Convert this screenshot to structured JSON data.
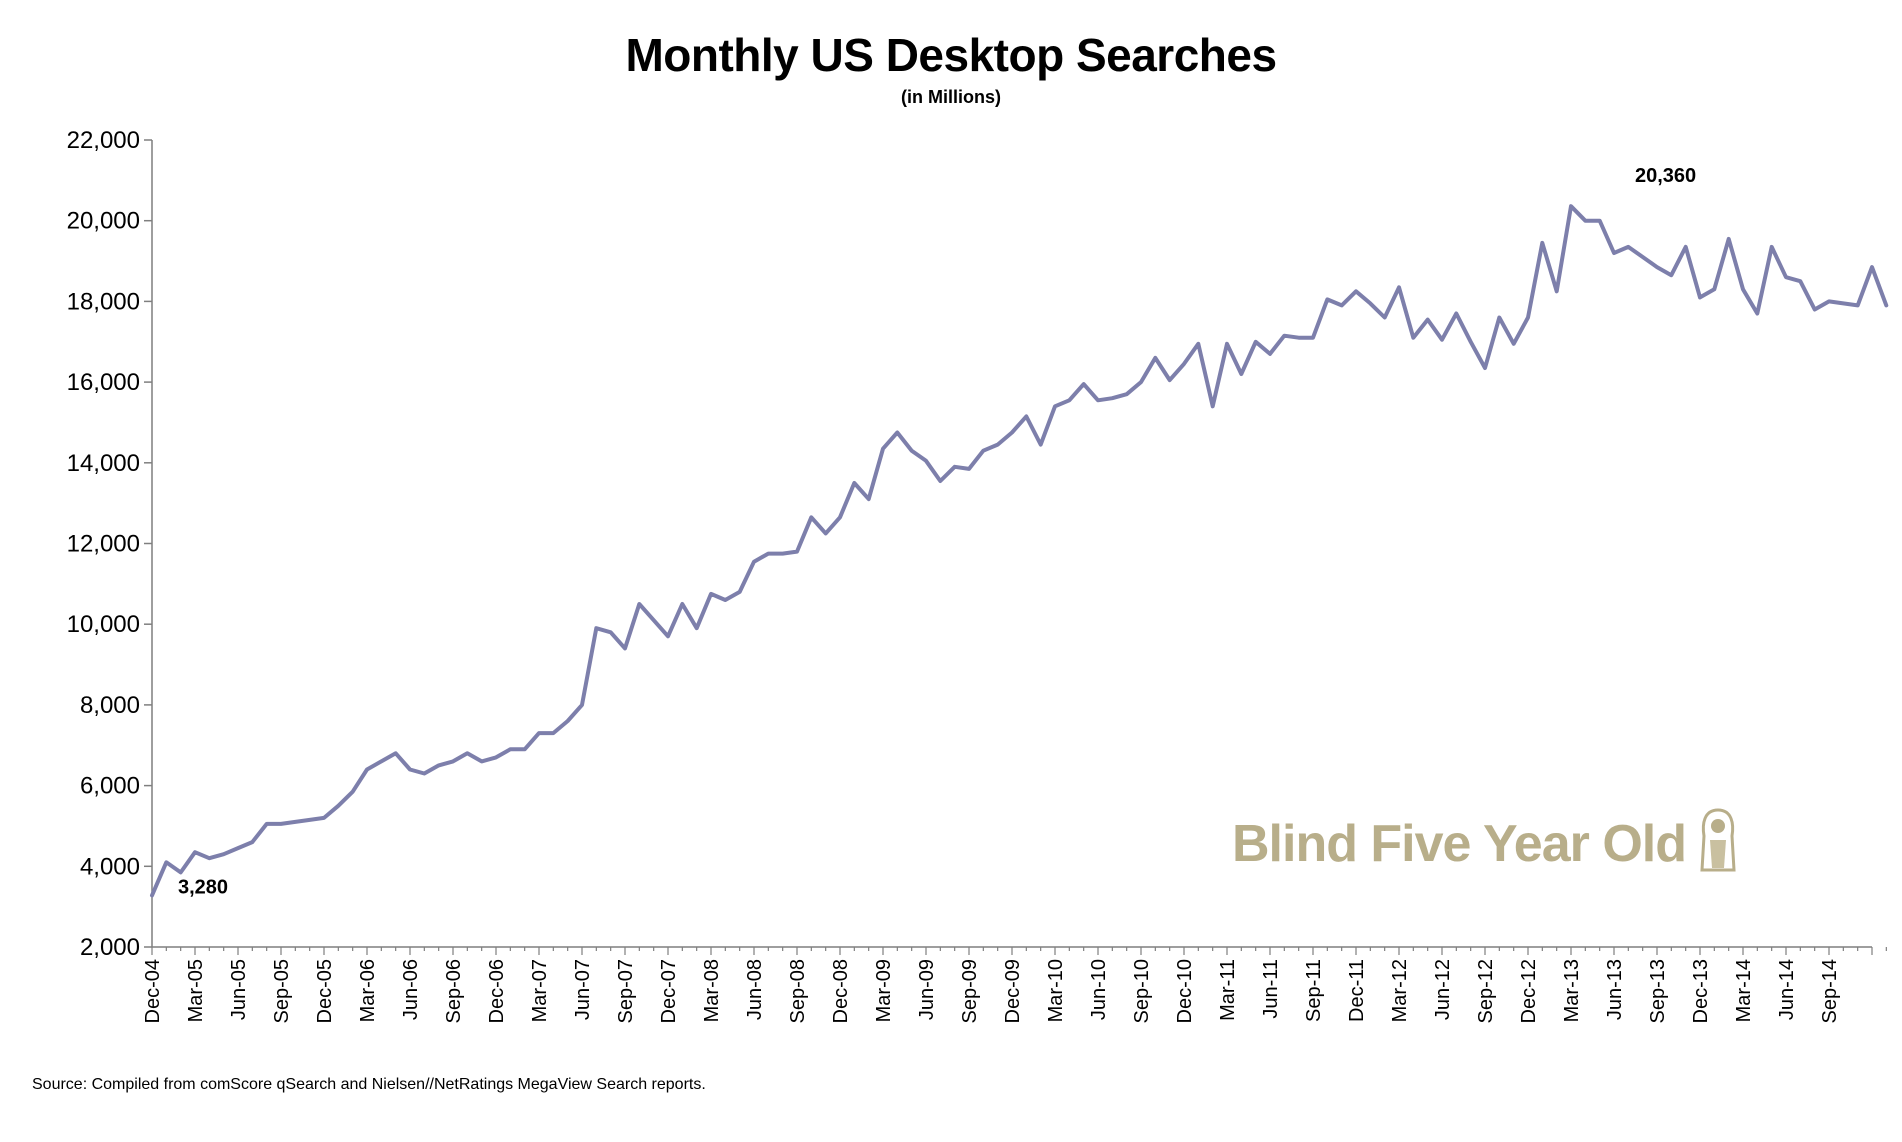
{
  "chart_data": {
    "type": "line",
    "title": "Monthly US Desktop Searches",
    "subtitle": "(in Millions)",
    "xlabel": "",
    "ylabel": "",
    "ylim": [
      2000,
      22000
    ],
    "yticks": [
      2000,
      4000,
      6000,
      8000,
      10000,
      12000,
      14000,
      16000,
      18000,
      20000,
      22000
    ],
    "ytick_labels": [
      "2,000",
      "4,000",
      "6,000",
      "8,000",
      "10,000",
      "12,000",
      "14,000",
      "16,000",
      "18,000",
      "20,000",
      "22,000"
    ],
    "xtick_labels": [
      "Dec-04",
      "Mar-05",
      "Jun-05",
      "Sep-05",
      "Dec-05",
      "Mar-06",
      "Jun-06",
      "Sep-06",
      "Dec-06",
      "Mar-07",
      "Jun-07",
      "Sep-07",
      "Dec-07",
      "Mar-08",
      "Jun-08",
      "Sep-08",
      "Dec-08",
      "Mar-09",
      "Jun-09",
      "Sep-09",
      "Dec-09",
      "Mar-10",
      "Jun-10",
      "Sep-10",
      "Dec-10",
      "Mar-11",
      "Jun-11",
      "Sep-11",
      "Dec-11",
      "Mar-12",
      "Jun-12",
      "Sep-12",
      "Dec-12",
      "Mar-13",
      "Jun-13",
      "Sep-13",
      "Dec-13",
      "Mar-14",
      "Jun-14",
      "Sep-14"
    ],
    "grid": false,
    "series": [
      {
        "color": "#7d7fab",
        "values": [
          3280,
          4100,
          3850,
          4350,
          4200,
          4300,
          4450,
          4600,
          5050,
          5050,
          5100,
          5150,
          5200,
          5500,
          5850,
          6400,
          6600,
          6800,
          6400,
          6300,
          6500,
          6600,
          6800,
          6600,
          6700,
          6900,
          6900,
          7300,
          7300,
          7600,
          8000,
          9900,
          9800,
          9400,
          10500,
          10100,
          9700,
          10500,
          9900,
          10750,
          10600,
          10800,
          11550,
          11750,
          11750,
          11800,
          12650,
          12250,
          12650,
          13500,
          13100,
          14350,
          14750,
          14300,
          14050,
          13550,
          13900,
          13850,
          14300,
          14450,
          14750,
          15150,
          14450,
          15400,
          15550,
          15950,
          15550,
          15600,
          15700,
          16000,
          16600,
          16050,
          16450,
          16950,
          15400,
          16950,
          16200,
          17000,
          16700,
          17150,
          17100,
          17100,
          18050,
          17900,
          18250,
          17950,
          17600,
          18350,
          17100,
          17550,
          17050,
          17700,
          17000,
          16350,
          17600,
          16950,
          17600,
          19450,
          18250,
          20360,
          20000,
          20000,
          19200,
          19350,
          19100,
          18850,
          18650,
          19350,
          18100,
          18300,
          19550,
          18300,
          17700,
          19350,
          18600,
          18500,
          17800,
          18000,
          17950,
          17900,
          18850,
          17900
        ]
      }
    ],
    "annotations": [
      {
        "label": "3,280",
        "x_index": 0,
        "value": 3280
      },
      {
        "label": "20,360",
        "x_index": 99,
        "value": 20360
      }
    ],
    "source": "Source: Compiled from comScore qSearch and Nielsen//NetRatings MegaView Search reports.",
    "watermark": "Blind Five Year Old"
  }
}
